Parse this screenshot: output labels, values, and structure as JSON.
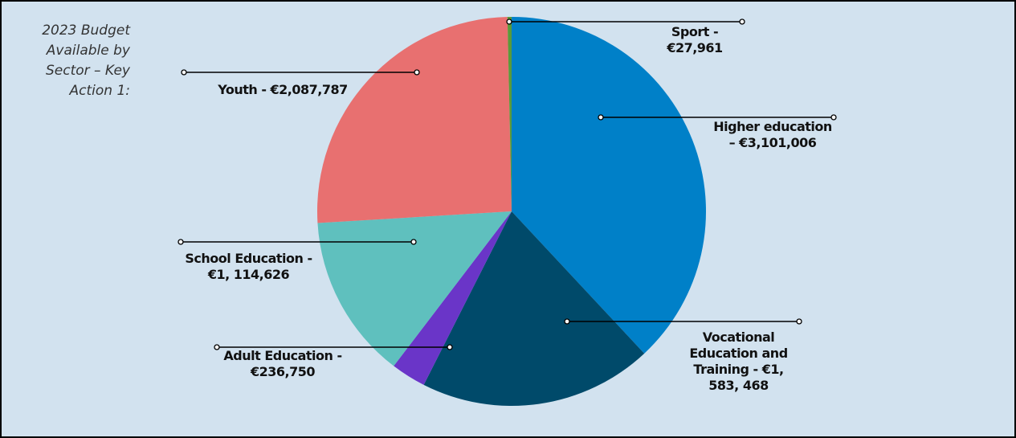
{
  "chart_data": {
    "type": "pie",
    "title": "2023 Budget Available by Sector – Key Action 1:",
    "values": [
      3101006,
      1583468,
      236750,
      1114626,
      2087787,
      27961
    ],
    "value_labels": [
      "Higher education – €3,101,006",
      "Vocational Education and Training - €1, 583, 468",
      "Adult Education - €236,750",
      "School Education - €1, 114,626",
      "Youth - €2,087,787",
      "Sport - €27,961"
    ],
    "colors": [
      "#0080c8",
      "#004a6a",
      "#6a35c8",
      "#5fc0be",
      "#e87070",
      "#5a9a3a"
    ]
  }
}
